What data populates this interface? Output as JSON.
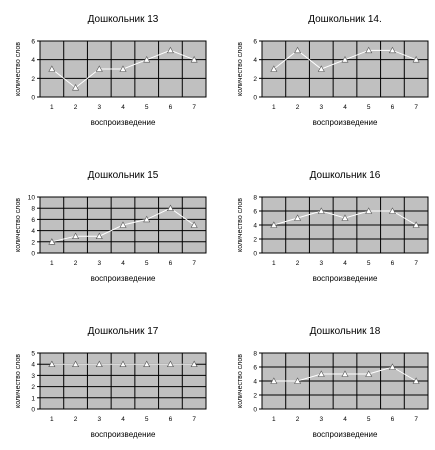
{
  "chart_data": [
    {
      "type": "line",
      "title": "Дошкольник 13",
      "xlabel": "воспроизведение",
      "ylabel": "количество слов",
      "x": [
        1,
        2,
        3,
        4,
        5,
        6,
        7
      ],
      "ylim": [
        0,
        6
      ],
      "yticks": [
        0,
        2,
        4,
        6
      ],
      "grid": true,
      "series": [
        {
          "values": [
            3,
            1,
            3,
            3,
            4,
            5,
            4
          ]
        }
      ]
    },
    {
      "type": "line",
      "title": "Дошкольник 14.",
      "xlabel": "воспроизведение",
      "ylabel": "количество слов",
      "x": [
        1,
        2,
        3,
        4,
        5,
        6,
        7
      ],
      "ylim": [
        0,
        6
      ],
      "yticks": [
        0,
        2,
        4,
        6
      ],
      "grid": true,
      "series": [
        {
          "values": [
            3,
            5,
            3,
            4,
            5,
            5,
            4
          ]
        }
      ]
    },
    {
      "type": "line",
      "title": "Дошкольник 15",
      "xlabel": "воспроизведение",
      "ylabel": "количество слов",
      "x": [
        1,
        2,
        3,
        4,
        5,
        6,
        7
      ],
      "ylim": [
        0,
        10
      ],
      "yticks": [
        0,
        2,
        4,
        6,
        8,
        10
      ],
      "grid": true,
      "series": [
        {
          "values": [
            2,
            3,
            3,
            5,
            6,
            8,
            5
          ]
        }
      ]
    },
    {
      "type": "line",
      "title": "Дошкольник 16",
      "xlabel": "воспроизведение",
      "ylabel": "количество слов",
      "x": [
        1,
        2,
        3,
        4,
        5,
        6,
        7
      ],
      "ylim": [
        0,
        8
      ],
      "yticks": [
        0,
        2,
        4,
        6,
        8
      ],
      "grid": true,
      "series": [
        {
          "values": [
            4,
            5,
            6,
            5,
            6,
            6,
            4
          ]
        }
      ]
    },
    {
      "type": "line",
      "title": "Дошкольник 17",
      "xlabel": "воспроизведение",
      "ylabel": "количество слов",
      "x": [
        1,
        2,
        3,
        4,
        5,
        6,
        7
      ],
      "ylim": [
        0,
        5
      ],
      "yticks": [
        0,
        1,
        2,
        3,
        4,
        5
      ],
      "grid": true,
      "series": [
        {
          "values": [
            4,
            4,
            4,
            4,
            4,
            4,
            4
          ]
        }
      ]
    },
    {
      "type": "line",
      "title": "Дошкольник 18",
      "xlabel": "воспроизведение",
      "ylabel": "количество слов",
      "x": [
        1,
        2,
        3,
        4,
        5,
        6,
        7
      ],
      "ylim": [
        0,
        8
      ],
      "yticks": [
        0,
        2,
        4,
        6,
        8
      ],
      "grid": true,
      "series": [
        {
          "values": [
            4,
            4,
            5,
            5,
            5,
            6,
            4
          ]
        }
      ]
    }
  ]
}
